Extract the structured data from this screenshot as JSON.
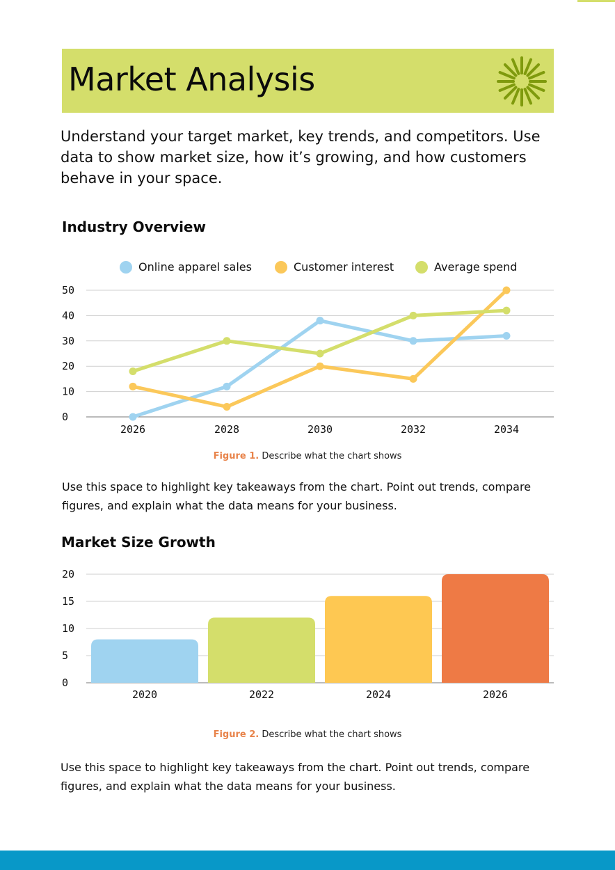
{
  "page": {
    "title": "Market Analysis",
    "intro": "Understand your target market, key trends, and competitors. Use data to show market size, how it’s growing, and how customers behave in your space.",
    "colors": {
      "banner": "#d4de6b",
      "sun": "#7f9a0d",
      "figure_label": "#e8834a",
      "footer": "#0898c8"
    }
  },
  "sections": {
    "industry": {
      "title": "Industry Overview",
      "caption_label": "Figure 1.",
      "caption_text": " Describe what the chart shows",
      "takeaway": "Use this space to highlight key takeaways from the chart. Point out trends, compare figures, and explain what the data means for your business."
    },
    "growth": {
      "title": "Market Size Growth",
      "caption_label": "Figure 2.",
      "caption_text": " Describe what the chart shows",
      "takeaway": "Use this space to highlight key takeaways from the chart. Point out trends, compare figures, and explain what the data means for your business."
    }
  },
  "chart_data": [
    {
      "type": "line",
      "x": [
        "2026",
        "2028",
        "2030",
        "2032",
        "2034"
      ],
      "ylim": [
        0,
        50
      ],
      "yticks": [
        0,
        10,
        20,
        30,
        40,
        50
      ],
      "grid": true,
      "legend": "top",
      "series": [
        {
          "name": "Online apparel sales",
          "color": "#9fd3f0",
          "values": [
            0,
            12,
            38,
            30,
            32
          ]
        },
        {
          "name": "Customer interest",
          "color": "#fbc85a",
          "values": [
            12,
            4,
            20,
            15,
            50
          ]
        },
        {
          "name": "Average spend",
          "color": "#d4de6b",
          "values": [
            18,
            30,
            25,
            40,
            42
          ]
        }
      ]
    },
    {
      "type": "bar",
      "categories": [
        "2020",
        "2022",
        "2024",
        "2026"
      ],
      "values": [
        8,
        12,
        16,
        20
      ],
      "colors": [
        "#9fd3f0",
        "#d4de6b",
        "#fec852",
        "#ee7a45"
      ],
      "ylim": [
        0,
        20
      ],
      "yticks": [
        0,
        5,
        10,
        15,
        20
      ],
      "grid": true
    }
  ]
}
